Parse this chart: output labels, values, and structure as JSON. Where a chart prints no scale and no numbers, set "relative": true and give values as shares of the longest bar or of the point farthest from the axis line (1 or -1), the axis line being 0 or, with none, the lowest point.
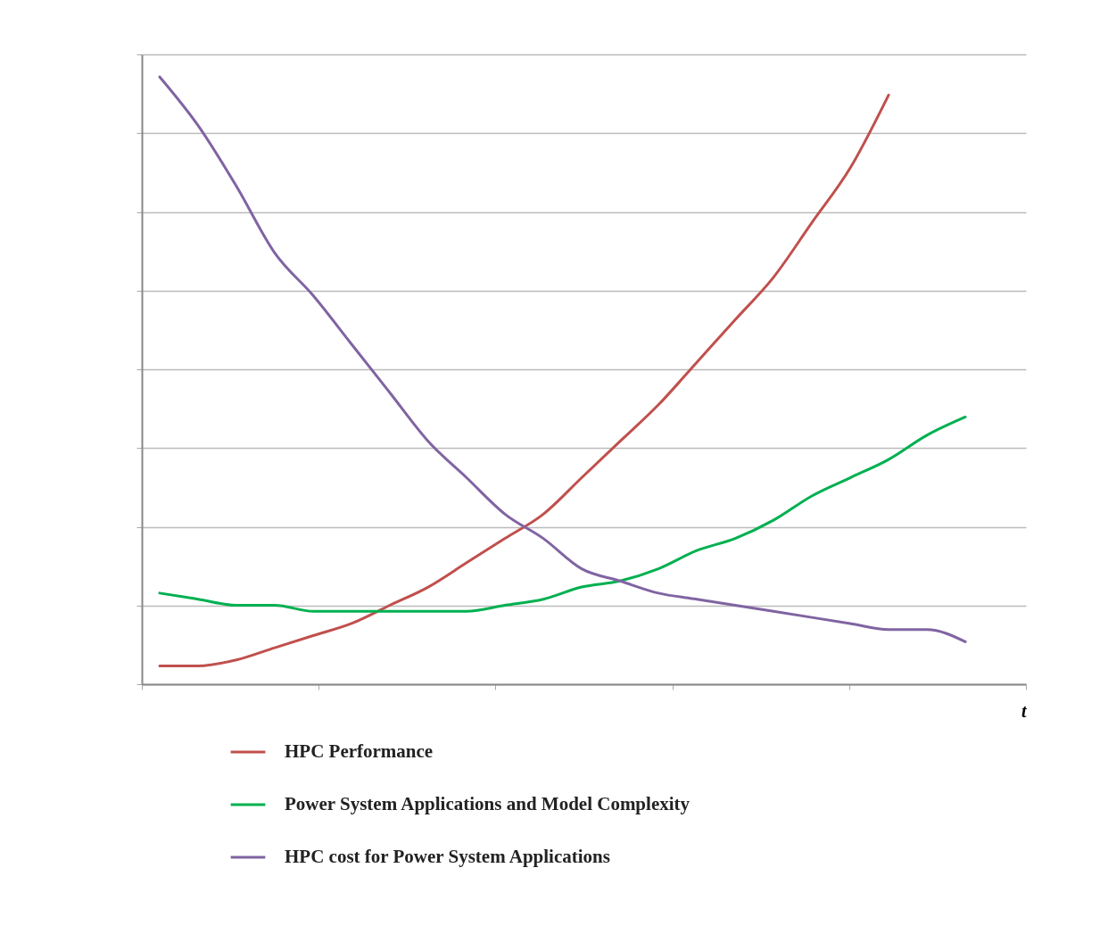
{
  "chart_data": {
    "type": "line",
    "relative": true,
    "xlabel": "t",
    "grid": "y",
    "legend": "bottom",
    "marker": "none",
    "line_style": "solid",
    "categories": [
      null,
      null,
      null,
      null,
      null,
      null,
      null,
      null,
      null,
      null,
      null,
      null,
      null,
      null,
      null,
      null,
      null,
      null,
      null,
      null,
      null,
      null
    ],
    "series": [
      {
        "name": "HPC Performance",
        "color": "#c0504d",
        "values": [
          0.03,
          0.03,
          0.04,
          0.06,
          0.08,
          0.1,
          0.13,
          0.16,
          0.2,
          0.24,
          0.28,
          0.34,
          0.4,
          0.46,
          0.53,
          0.6,
          0.67,
          0.76,
          0.85,
          0.97,
          null,
          null
        ]
      },
      {
        "name": "Power System Applications and Model Complexity",
        "color": "#00b050",
        "values": [
          0.15,
          0.14,
          0.13,
          0.13,
          0.12,
          0.12,
          0.12,
          0.12,
          0.12,
          0.13,
          0.14,
          0.16,
          0.17,
          0.19,
          0.22,
          0.24,
          0.27,
          0.31,
          0.34,
          0.37,
          0.41,
          0.44
        ]
      },
      {
        "name": "HPC cost for Power System Applications",
        "color": "#8064a2",
        "values": [
          1.0,
          0.92,
          0.82,
          0.71,
          0.64,
          0.56,
          0.48,
          0.4,
          0.34,
          0.28,
          0.24,
          0.19,
          0.17,
          0.15,
          0.14,
          0.13,
          0.12,
          0.11,
          0.1,
          0.09,
          0.09,
          0.07
        ]
      }
    ]
  }
}
